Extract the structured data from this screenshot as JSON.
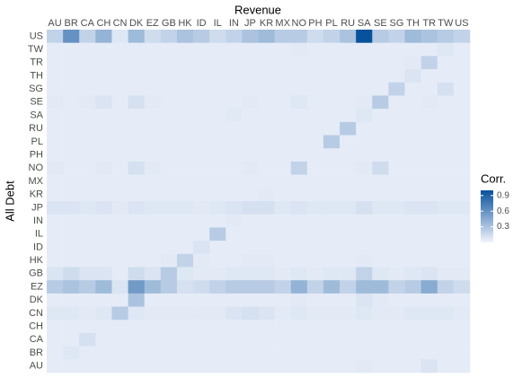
{
  "chart_data": {
    "type": "heatmap",
    "x_label": "Revenue",
    "y_label": "All Debt",
    "legend_title": "Corr.",
    "x_categories": [
      "AU",
      "BR",
      "CA",
      "CH",
      "CN",
      "DK",
      "EZ",
      "GB",
      "HK",
      "ID",
      "IL",
      "IN",
      "JP",
      "KR",
      "MX",
      "NO",
      "PH",
      "PL",
      "RU",
      "SA",
      "SE",
      "SG",
      "TH",
      "TR",
      "TW",
      "US"
    ],
    "y_categories": [
      "US",
      "TW",
      "TR",
      "TH",
      "SG",
      "SE",
      "SA",
      "RU",
      "PL",
      "PH",
      "NO",
      "MX",
      "KR",
      "JP",
      "IN",
      "IL",
      "ID",
      "HK",
      "GB",
      "EZ",
      "DK",
      "CN",
      "CH",
      "CA",
      "BR",
      "AU"
    ],
    "values": [
      [
        0.2,
        0.6,
        0.2,
        0.4,
        0.08,
        0.35,
        0.15,
        0.2,
        0.3,
        0.25,
        0.15,
        0.2,
        0.3,
        0.35,
        0.25,
        0.25,
        0.15,
        0.2,
        0.3,
        1.0,
        0.25,
        0.2,
        0.35,
        0.3,
        0.25,
        0.2
      ],
      [
        0.05,
        0.05,
        0.05,
        0.05,
        0.05,
        0.05,
        0.05,
        0.05,
        0.05,
        0.05,
        0.05,
        0.05,
        0.05,
        0.05,
        0.05,
        0.06,
        0.05,
        0.05,
        0.05,
        0.05,
        0.05,
        0.05,
        0.05,
        0.05,
        0.08,
        0.05
      ],
      [
        0.05,
        0.05,
        0.05,
        0.05,
        0.05,
        0.05,
        0.05,
        0.05,
        0.05,
        0.05,
        0.05,
        0.05,
        0.05,
        0.05,
        0.05,
        0.05,
        0.05,
        0.05,
        0.05,
        0.05,
        0.05,
        0.05,
        0.06,
        0.2,
        0.05,
        0.05
      ],
      [
        0.05,
        0.05,
        0.05,
        0.05,
        0.05,
        0.05,
        0.05,
        0.05,
        0.05,
        0.05,
        0.05,
        0.05,
        0.05,
        0.05,
        0.05,
        0.05,
        0.05,
        0.05,
        0.05,
        0.05,
        0.05,
        0.05,
        0.1,
        0.05,
        0.05,
        0.05
      ],
      [
        0.05,
        0.05,
        0.05,
        0.05,
        0.05,
        0.05,
        0.05,
        0.05,
        0.05,
        0.05,
        0.05,
        0.05,
        0.05,
        0.05,
        0.05,
        0.05,
        0.05,
        0.05,
        0.05,
        0.05,
        0.05,
        0.2,
        0.05,
        0.05,
        0.12,
        0.05
      ],
      [
        0.06,
        0.05,
        0.06,
        0.1,
        0.05,
        0.12,
        0.06,
        0.05,
        0.05,
        0.05,
        0.05,
        0.05,
        0.06,
        0.05,
        0.05,
        0.08,
        0.05,
        0.05,
        0.05,
        0.06,
        0.25,
        0.05,
        0.05,
        0.06,
        0.05,
        0.05
      ],
      [
        0.05,
        0.05,
        0.05,
        0.05,
        0.05,
        0.05,
        0.05,
        0.05,
        0.05,
        0.05,
        0.05,
        0.07,
        0.05,
        0.05,
        0.05,
        0.05,
        0.05,
        0.05,
        0.05,
        0.08,
        0.05,
        0.05,
        0.05,
        0.05,
        0.05,
        0.05
      ],
      [
        0.05,
        0.05,
        0.05,
        0.05,
        0.05,
        0.05,
        0.05,
        0.05,
        0.05,
        0.05,
        0.05,
        0.05,
        0.05,
        0.05,
        0.05,
        0.05,
        0.05,
        0.05,
        0.25,
        0.05,
        0.05,
        0.05,
        0.05,
        0.05,
        0.05,
        0.05
      ],
      [
        0.05,
        0.05,
        0.05,
        0.05,
        0.05,
        0.05,
        0.05,
        0.05,
        0.05,
        0.05,
        0.05,
        0.05,
        0.05,
        0.05,
        0.05,
        0.05,
        0.05,
        0.25,
        0.05,
        0.05,
        0.05,
        0.05,
        0.05,
        0.05,
        0.05,
        0.05
      ],
      [
        0.05,
        0.05,
        0.05,
        0.05,
        0.05,
        0.05,
        0.05,
        0.05,
        0.05,
        0.05,
        0.05,
        0.05,
        0.05,
        0.05,
        0.05,
        0.05,
        0.05,
        0.05,
        0.05,
        0.05,
        0.05,
        0.05,
        0.05,
        0.05,
        0.05,
        0.05
      ],
      [
        0.06,
        0.05,
        0.05,
        0.06,
        0.05,
        0.12,
        0.06,
        0.05,
        0.05,
        0.05,
        0.05,
        0.05,
        0.06,
        0.05,
        0.05,
        0.2,
        0.05,
        0.05,
        0.05,
        0.06,
        0.15,
        0.05,
        0.05,
        0.05,
        0.05,
        0.05
      ],
      [
        0.05,
        0.05,
        0.05,
        0.05,
        0.05,
        0.05,
        0.05,
        0.05,
        0.05,
        0.05,
        0.05,
        0.05,
        0.05,
        0.05,
        0.05,
        0.05,
        0.05,
        0.05,
        0.05,
        0.05,
        0.05,
        0.05,
        0.05,
        0.05,
        0.05,
        0.05
      ],
      [
        0.05,
        0.05,
        0.05,
        0.05,
        0.05,
        0.05,
        0.05,
        0.05,
        0.05,
        0.05,
        0.05,
        0.05,
        0.05,
        0.06,
        0.05,
        0.05,
        0.05,
        0.05,
        0.05,
        0.05,
        0.05,
        0.05,
        0.05,
        0.05,
        0.05,
        0.05
      ],
      [
        0.1,
        0.1,
        0.08,
        0.1,
        0.06,
        0.1,
        0.08,
        0.08,
        0.08,
        0.06,
        0.08,
        0.1,
        0.12,
        0.12,
        0.08,
        0.1,
        0.08,
        0.08,
        0.08,
        0.12,
        0.08,
        0.08,
        0.1,
        0.1,
        0.08,
        0.08
      ],
      [
        0.05,
        0.05,
        0.05,
        0.05,
        0.05,
        0.05,
        0.05,
        0.05,
        0.05,
        0.05,
        0.05,
        0.06,
        0.05,
        0.05,
        0.05,
        0.05,
        0.05,
        0.05,
        0.05,
        0.05,
        0.05,
        0.05,
        0.05,
        0.05,
        0.05,
        0.05
      ],
      [
        0.05,
        0.05,
        0.05,
        0.05,
        0.05,
        0.05,
        0.05,
        0.05,
        0.05,
        0.05,
        0.25,
        0.05,
        0.05,
        0.05,
        0.05,
        0.05,
        0.05,
        0.05,
        0.05,
        0.05,
        0.05,
        0.05,
        0.05,
        0.05,
        0.05,
        0.05
      ],
      [
        0.05,
        0.05,
        0.05,
        0.05,
        0.05,
        0.05,
        0.05,
        0.05,
        0.05,
        0.1,
        0.05,
        0.05,
        0.05,
        0.05,
        0.05,
        0.05,
        0.05,
        0.05,
        0.05,
        0.05,
        0.05,
        0.05,
        0.05,
        0.05,
        0.05,
        0.05
      ],
      [
        0.05,
        0.05,
        0.05,
        0.05,
        0.05,
        0.05,
        0.05,
        0.06,
        0.2,
        0.06,
        0.05,
        0.05,
        0.06,
        0.06,
        0.05,
        0.05,
        0.05,
        0.05,
        0.05,
        0.06,
        0.05,
        0.05,
        0.05,
        0.05,
        0.05,
        0.05
      ],
      [
        0.1,
        0.15,
        0.1,
        0.1,
        0.05,
        0.15,
        0.1,
        0.25,
        0.08,
        0.06,
        0.06,
        0.08,
        0.08,
        0.08,
        0.06,
        0.08,
        0.06,
        0.08,
        0.08,
        0.2,
        0.08,
        0.06,
        0.08,
        0.1,
        0.06,
        0.06
      ],
      [
        0.25,
        0.3,
        0.25,
        0.35,
        0.1,
        0.55,
        0.35,
        0.25,
        0.12,
        0.15,
        0.2,
        0.25,
        0.25,
        0.25,
        0.2,
        0.4,
        0.2,
        0.35,
        0.2,
        0.35,
        0.35,
        0.2,
        0.25,
        0.45,
        0.2,
        0.15
      ],
      [
        0.05,
        0.05,
        0.05,
        0.05,
        0.05,
        0.3,
        0.05,
        0.05,
        0.05,
        0.05,
        0.05,
        0.05,
        0.05,
        0.05,
        0.05,
        0.06,
        0.05,
        0.05,
        0.05,
        0.1,
        0.06,
        0.05,
        0.05,
        0.05,
        0.05,
        0.05
      ],
      [
        0.08,
        0.08,
        0.06,
        0.08,
        0.25,
        0.08,
        0.06,
        0.06,
        0.06,
        0.06,
        0.06,
        0.1,
        0.12,
        0.1,
        0.06,
        0.08,
        0.06,
        0.06,
        0.06,
        0.08,
        0.06,
        0.06,
        0.08,
        0.08,
        0.08,
        0.06
      ],
      [
        0.05,
        0.05,
        0.05,
        0.05,
        0.05,
        0.05,
        0.05,
        0.05,
        0.05,
        0.05,
        0.05,
        0.05,
        0.05,
        0.05,
        0.05,
        0.05,
        0.05,
        0.05,
        0.05,
        0.05,
        0.05,
        0.05,
        0.05,
        0.05,
        0.05,
        0.05
      ],
      [
        0.05,
        0.05,
        0.12,
        0.05,
        0.05,
        0.05,
        0.05,
        0.05,
        0.05,
        0.05,
        0.05,
        0.05,
        0.05,
        0.05,
        0.05,
        0.05,
        0.05,
        0.05,
        0.05,
        0.05,
        0.05,
        0.05,
        0.05,
        0.05,
        0.05,
        0.05
      ],
      [
        0.05,
        0.08,
        0.05,
        0.05,
        0.05,
        0.05,
        0.05,
        0.05,
        0.05,
        0.05,
        0.05,
        0.05,
        0.05,
        0.05,
        0.05,
        0.05,
        0.05,
        0.05,
        0.05,
        0.05,
        0.05,
        0.05,
        0.05,
        0.05,
        0.05,
        0.05
      ],
      [
        0.05,
        0.05,
        0.05,
        0.05,
        0.05,
        0.05,
        0.05,
        0.05,
        0.05,
        0.05,
        0.05,
        0.05,
        0.05,
        0.05,
        0.05,
        0.05,
        0.05,
        0.05,
        0.05,
        0.06,
        0.05,
        0.05,
        0.05,
        0.1,
        0.05,
        0.05
      ]
    ],
    "colorlim": [
      0,
      1
    ],
    "colorticks": [
      0.3,
      0.6,
      0.9
    ],
    "colors": [
      "#f1f4fc",
      "#08519c"
    ]
  }
}
